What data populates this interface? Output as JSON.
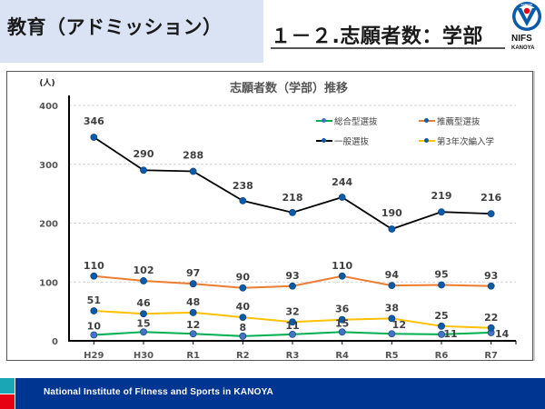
{
  "header": {
    "section_title": "教育（アドミッション）",
    "slide_title": "１－２.志願者数：学部",
    "logo": {
      "icon": "nifs-emblem-icon",
      "emblem_text": "KANOYA",
      "name": "NIFS",
      "sub": "KANOYA"
    }
  },
  "footer": {
    "text": "National Institute of Fitness and Sports in KANOYA",
    "accent_colors": [
      "#1aa6b4",
      "#e60012"
    ],
    "bar_color": "#003592"
  },
  "chart_data": {
    "type": "line",
    "title": "志願者数（学部）推移",
    "xlabel": "",
    "ylabel": "(人)",
    "ylim": [
      0,
      400
    ],
    "yticks": [
      0,
      100,
      200,
      300,
      400
    ],
    "grid": true,
    "legend_position": "top-right",
    "categories": [
      "H29",
      "H30",
      "R1",
      "R2",
      "R3",
      "R4",
      "R5",
      "R6",
      "R7"
    ],
    "series": [
      {
        "name": "総合型選抜",
        "color": "#00b050",
        "marker_color": "#4472c4",
        "values": [
          10,
          15,
          12,
          8,
          11,
          15,
          12,
          11,
          14
        ]
      },
      {
        "name": "推薦型選抜",
        "color": "#ed7d31",
        "marker_color": "#0b5ba8",
        "values": [
          110,
          102,
          97,
          90,
          93,
          110,
          94,
          95,
          93
        ]
      },
      {
        "name": "一般選抜",
        "color": "#000000",
        "marker_color": "#0b5ba8",
        "values": [
          346,
          290,
          288,
          238,
          218,
          244,
          190,
          219,
          216
        ]
      },
      {
        "name": "第3年次編入学",
        "color": "#ffc000",
        "marker_color": "#0b5ba8",
        "values": [
          51,
          46,
          48,
          40,
          32,
          36,
          38,
          25,
          22
        ]
      }
    ]
  }
}
